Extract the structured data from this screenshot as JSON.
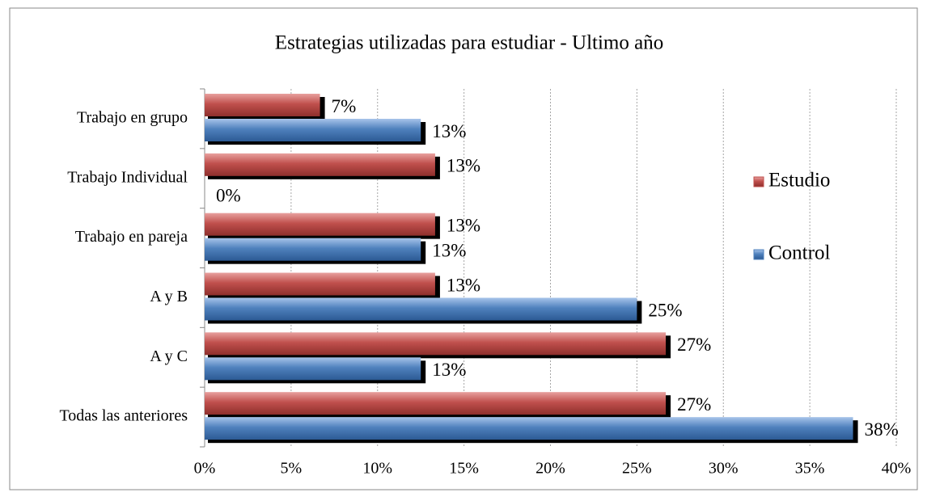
{
  "chart_data": {
    "type": "bar",
    "orientation": "horizontal",
    "title": "Estrategias utilizadas para estudiar - Ultimo año",
    "categories": [
      "Trabajo en grupo",
      "Trabajo Individual",
      "Trabajo en pareja",
      "A y B",
      "A y C",
      "Todas las anteriores"
    ],
    "series": [
      {
        "name": "Estudio",
        "color": "#c0504d",
        "values": [
          6.67,
          13.33,
          13.33,
          13.33,
          26.67,
          26.67
        ],
        "value_labels": [
          "7%",
          "13%",
          "13%",
          "13%",
          "27%",
          "27%"
        ]
      },
      {
        "name": "Control",
        "color": "#4f81bd",
        "values": [
          12.5,
          0,
          12.5,
          25,
          12.5,
          37.5
        ],
        "value_labels": [
          "13%",
          "0%",
          "13%",
          "25%",
          "13%",
          "38%"
        ]
      }
    ],
    "xlim": [
      0,
      40
    ],
    "xticks": [
      {
        "value": 0,
        "label": "0%"
      },
      {
        "value": 5,
        "label": "5%"
      },
      {
        "value": 10,
        "label": "10%"
      },
      {
        "value": 15,
        "label": "15%"
      },
      {
        "value": 20,
        "label": "20%"
      },
      {
        "value": 25,
        "label": "25%"
      },
      {
        "value": 30,
        "label": "30%"
      },
      {
        "value": 35,
        "label": "35%"
      },
      {
        "value": 40,
        "label": "40%"
      }
    ],
    "grid": true,
    "legend": "right"
  }
}
